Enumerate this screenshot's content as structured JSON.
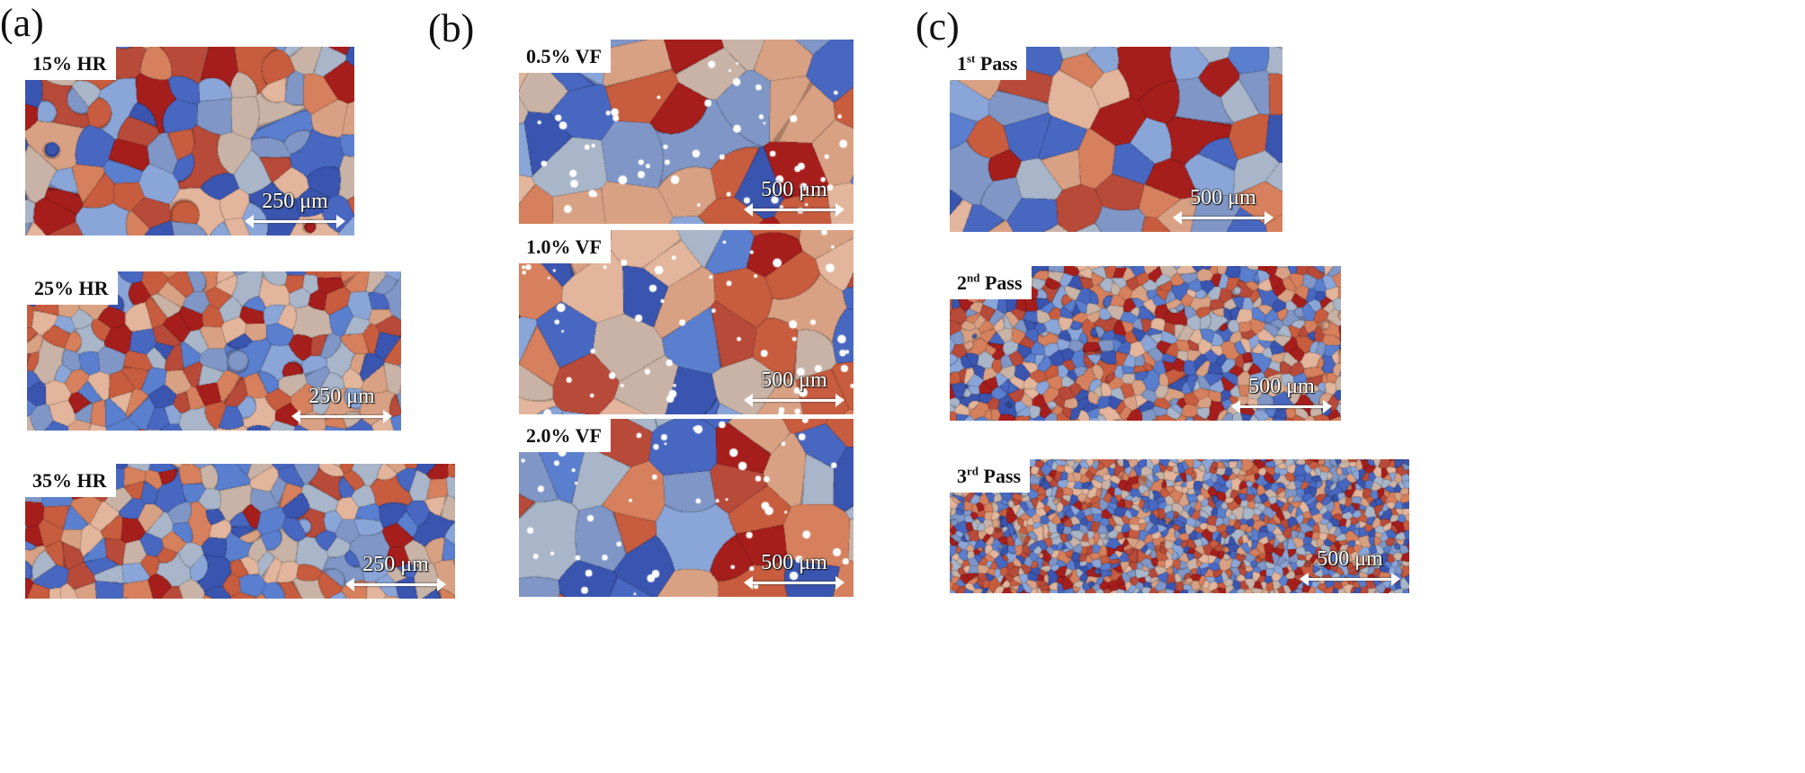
{
  "figure": {
    "panels": [
      {
        "letter": "(a)",
        "images": [
          {
            "id": "a1",
            "label": "15% HR",
            "sup": "",
            "suffix": "",
            "scale": "250 μm",
            "seed": 11,
            "grain": "coarse",
            "particles": false
          },
          {
            "id": "a2",
            "label": "25% HR",
            "sup": "",
            "suffix": "",
            "scale": "250 μm",
            "seed": 23,
            "grain": "medium",
            "particles": false
          },
          {
            "id": "a3",
            "label": "35% HR",
            "sup": "",
            "suffix": "",
            "scale": "250 μm",
            "seed": 37,
            "grain": "medium",
            "particles": false
          }
        ]
      },
      {
        "letter": "(b)",
        "images": [
          {
            "id": "b1",
            "label": "0.5% VF",
            "sup": "",
            "suffix": "",
            "scale": "500 μm",
            "seed": 41,
            "grain": "large",
            "particles": true
          },
          {
            "id": "b2",
            "label": "1.0% VF",
            "sup": "",
            "suffix": "",
            "scale": "500 μm",
            "seed": 53,
            "grain": "large",
            "particles": true
          },
          {
            "id": "b3",
            "label": "2.0% VF",
            "sup": "",
            "suffix": "",
            "scale": "500 μm",
            "seed": 67,
            "grain": "large",
            "particles": true
          }
        ]
      },
      {
        "letter": "(c)",
        "images": [
          {
            "id": "c1",
            "label": "1",
            "sup": "st",
            "suffix": " Pass",
            "scale": "500 μm",
            "seed": 71,
            "grain": "large-coarse",
            "particles": false
          },
          {
            "id": "c2",
            "label": "2",
            "sup": "nd",
            "suffix": " Pass",
            "scale": "500 μm",
            "seed": 83,
            "grain": "fine",
            "particles": false
          },
          {
            "id": "c3",
            "label": "3",
            "sup": "rd",
            "suffix": " Pass",
            "scale": "500 μm",
            "seed": 97,
            "grain": "very-fine",
            "particles": false
          }
        ]
      }
    ],
    "palette": [
      "#3a55b0",
      "#5b7fcf",
      "#8aa6d9",
      "#a9b5c8",
      "#c9b3a7",
      "#d9a184",
      "#d6805d",
      "#c85c3f",
      "#a61e1c",
      "#7f96c6",
      "#e2b59c",
      "#4867c1",
      "#b84a3a"
    ]
  }
}
